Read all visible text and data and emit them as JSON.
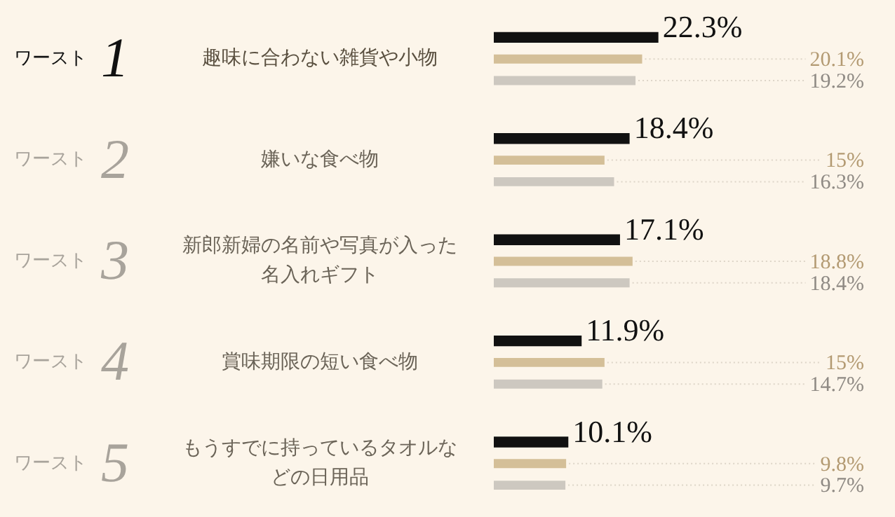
{
  "chart_data": {
    "type": "bar",
    "orientation": "horizontal",
    "categories": [
      "趣味に合わない雑貨や小物",
      "嫌いな食べ物",
      "新郎新婦の名前や写真が入った名入れギフト",
      "賞味期限の短い食べ物",
      "もうすでに持っているタオルなどの日用品"
    ],
    "series": [
      {
        "color": "#111111",
        "values": [
          22.3,
          18.4,
          17.1,
          11.9,
          10.1
        ],
        "value_labels": [
          "22.3%",
          "18.4%",
          "17.1%",
          "11.9%",
          "10.1%"
        ]
      },
      {
        "color": "#d4bf98",
        "values": [
          20.1,
          15,
          18.8,
          15,
          9.8
        ],
        "value_labels": [
          "20.1%",
          "15%",
          "18.8%",
          "15%",
          "9.8%"
        ]
      },
      {
        "color": "#cdc8c0",
        "values": [
          19.2,
          16.3,
          18.4,
          14.7,
          9.7
        ],
        "value_labels": [
          "19.2%",
          "16.3%",
          "18.4%",
          "14.7%",
          "9.7%"
        ]
      }
    ],
    "grid": "y",
    "legend": false,
    "annotations": [
      "ワースト 1",
      "ワースト 2",
      "ワースト 3",
      "ワースト 4",
      "ワースト 5"
    ]
  }
}
